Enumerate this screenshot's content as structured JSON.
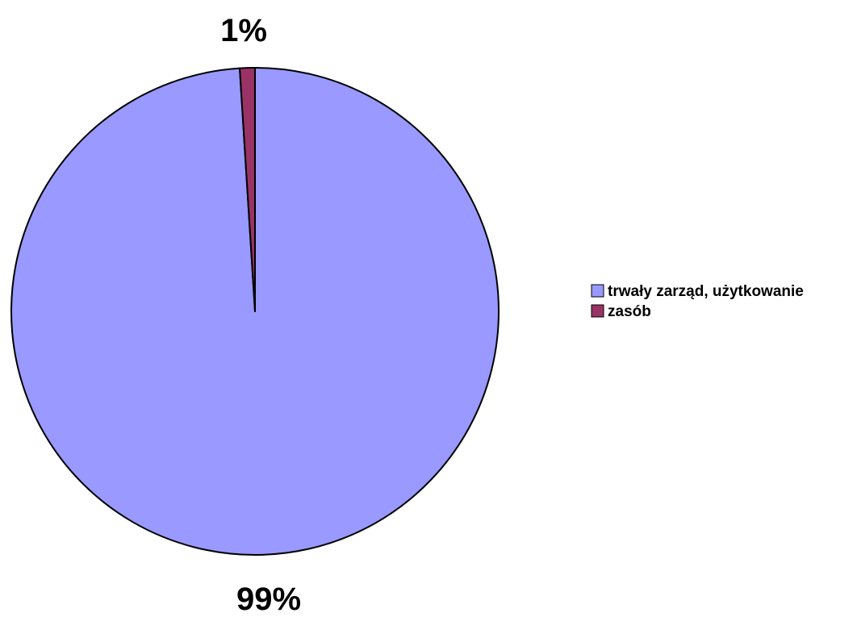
{
  "chart_data": {
    "type": "pie",
    "slices": [
      {
        "label": "trwały zarząd, użytkowanie",
        "value": 99,
        "data_label": "99%",
        "color": "#9999FF"
      },
      {
        "label": "zasób",
        "value": 1,
        "data_label": "1%",
        "color": "#993366"
      }
    ],
    "legend_position": "right",
    "outline_color": "#000000",
    "background": "#FFFFFF"
  }
}
